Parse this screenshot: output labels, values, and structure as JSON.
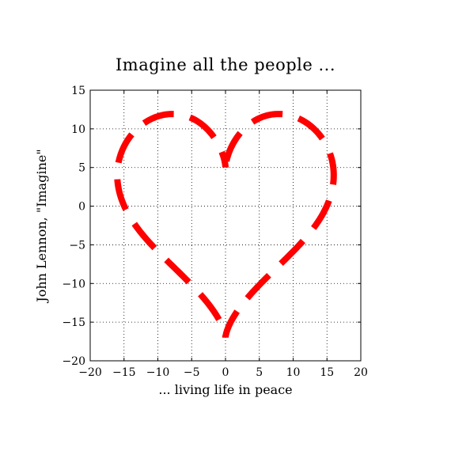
{
  "chart_data": {
    "type": "line",
    "title": "Imagine all the people ...",
    "xlabel": "... living life in peace",
    "ylabel": "John Lennon, \"Imagine\"",
    "xlim": [
      -20,
      20
    ],
    "ylim": [
      -20,
      15
    ],
    "xticks": [
      -20,
      -15,
      -10,
      -5,
      0,
      5,
      10,
      15,
      20
    ],
    "yticks": [
      -20,
      -15,
      -10,
      -5,
      0,
      5,
      10,
      15
    ],
    "xtick_labels": [
      "−20",
      "−15",
      "−10",
      "−5",
      "0",
      "5",
      "10",
      "15",
      "20"
    ],
    "ytick_labels": [
      "−20",
      "−15",
      "−10",
      "−5",
      "0",
      "5",
      "10",
      "15"
    ],
    "grid": true,
    "grid_style": "dotted",
    "line_style": "dashed",
    "line_color": "#ff0000",
    "series": [
      {
        "curve": "heart",
        "x_equation": "16*sin(t)^3",
        "y_equation": "13*cos(t) - 5*cos(2t) - 2*cos(3t) - cos(4t)",
        "t_range": [
          0,
          6.283185307
        ],
        "x": [
          0,
          0.47,
          2.45,
          6.37,
          11.1,
          14.4,
          16.0,
          15.2,
          13.4,
          11.2,
          8.7,
          6.7,
          4.6,
          2.2,
          0.6,
          0,
          -0.6,
          -2.2,
          -4.6,
          -6.7,
          -8.7,
          -11.2,
          -13.4,
          -15.2,
          -16.0,
          -14.4,
          -11.1,
          -6.37,
          -2.45,
          -0.47,
          0
        ],
        "y": [
          5,
          5.5,
          8.2,
          10.3,
          10.4,
          7.8,
          4.0,
          0,
          -3.1,
          -5.8,
          -8.3,
          -10.2,
          -12.0,
          -13.7,
          -14.9,
          -15.0,
          -14.9,
          -13.7,
          -12.0,
          -10.2,
          -8.3,
          -5.8,
          -3.1,
          0,
          4.0,
          7.8,
          10.4,
          10.3,
          8.2,
          5.5,
          5
        ]
      }
    ]
  }
}
